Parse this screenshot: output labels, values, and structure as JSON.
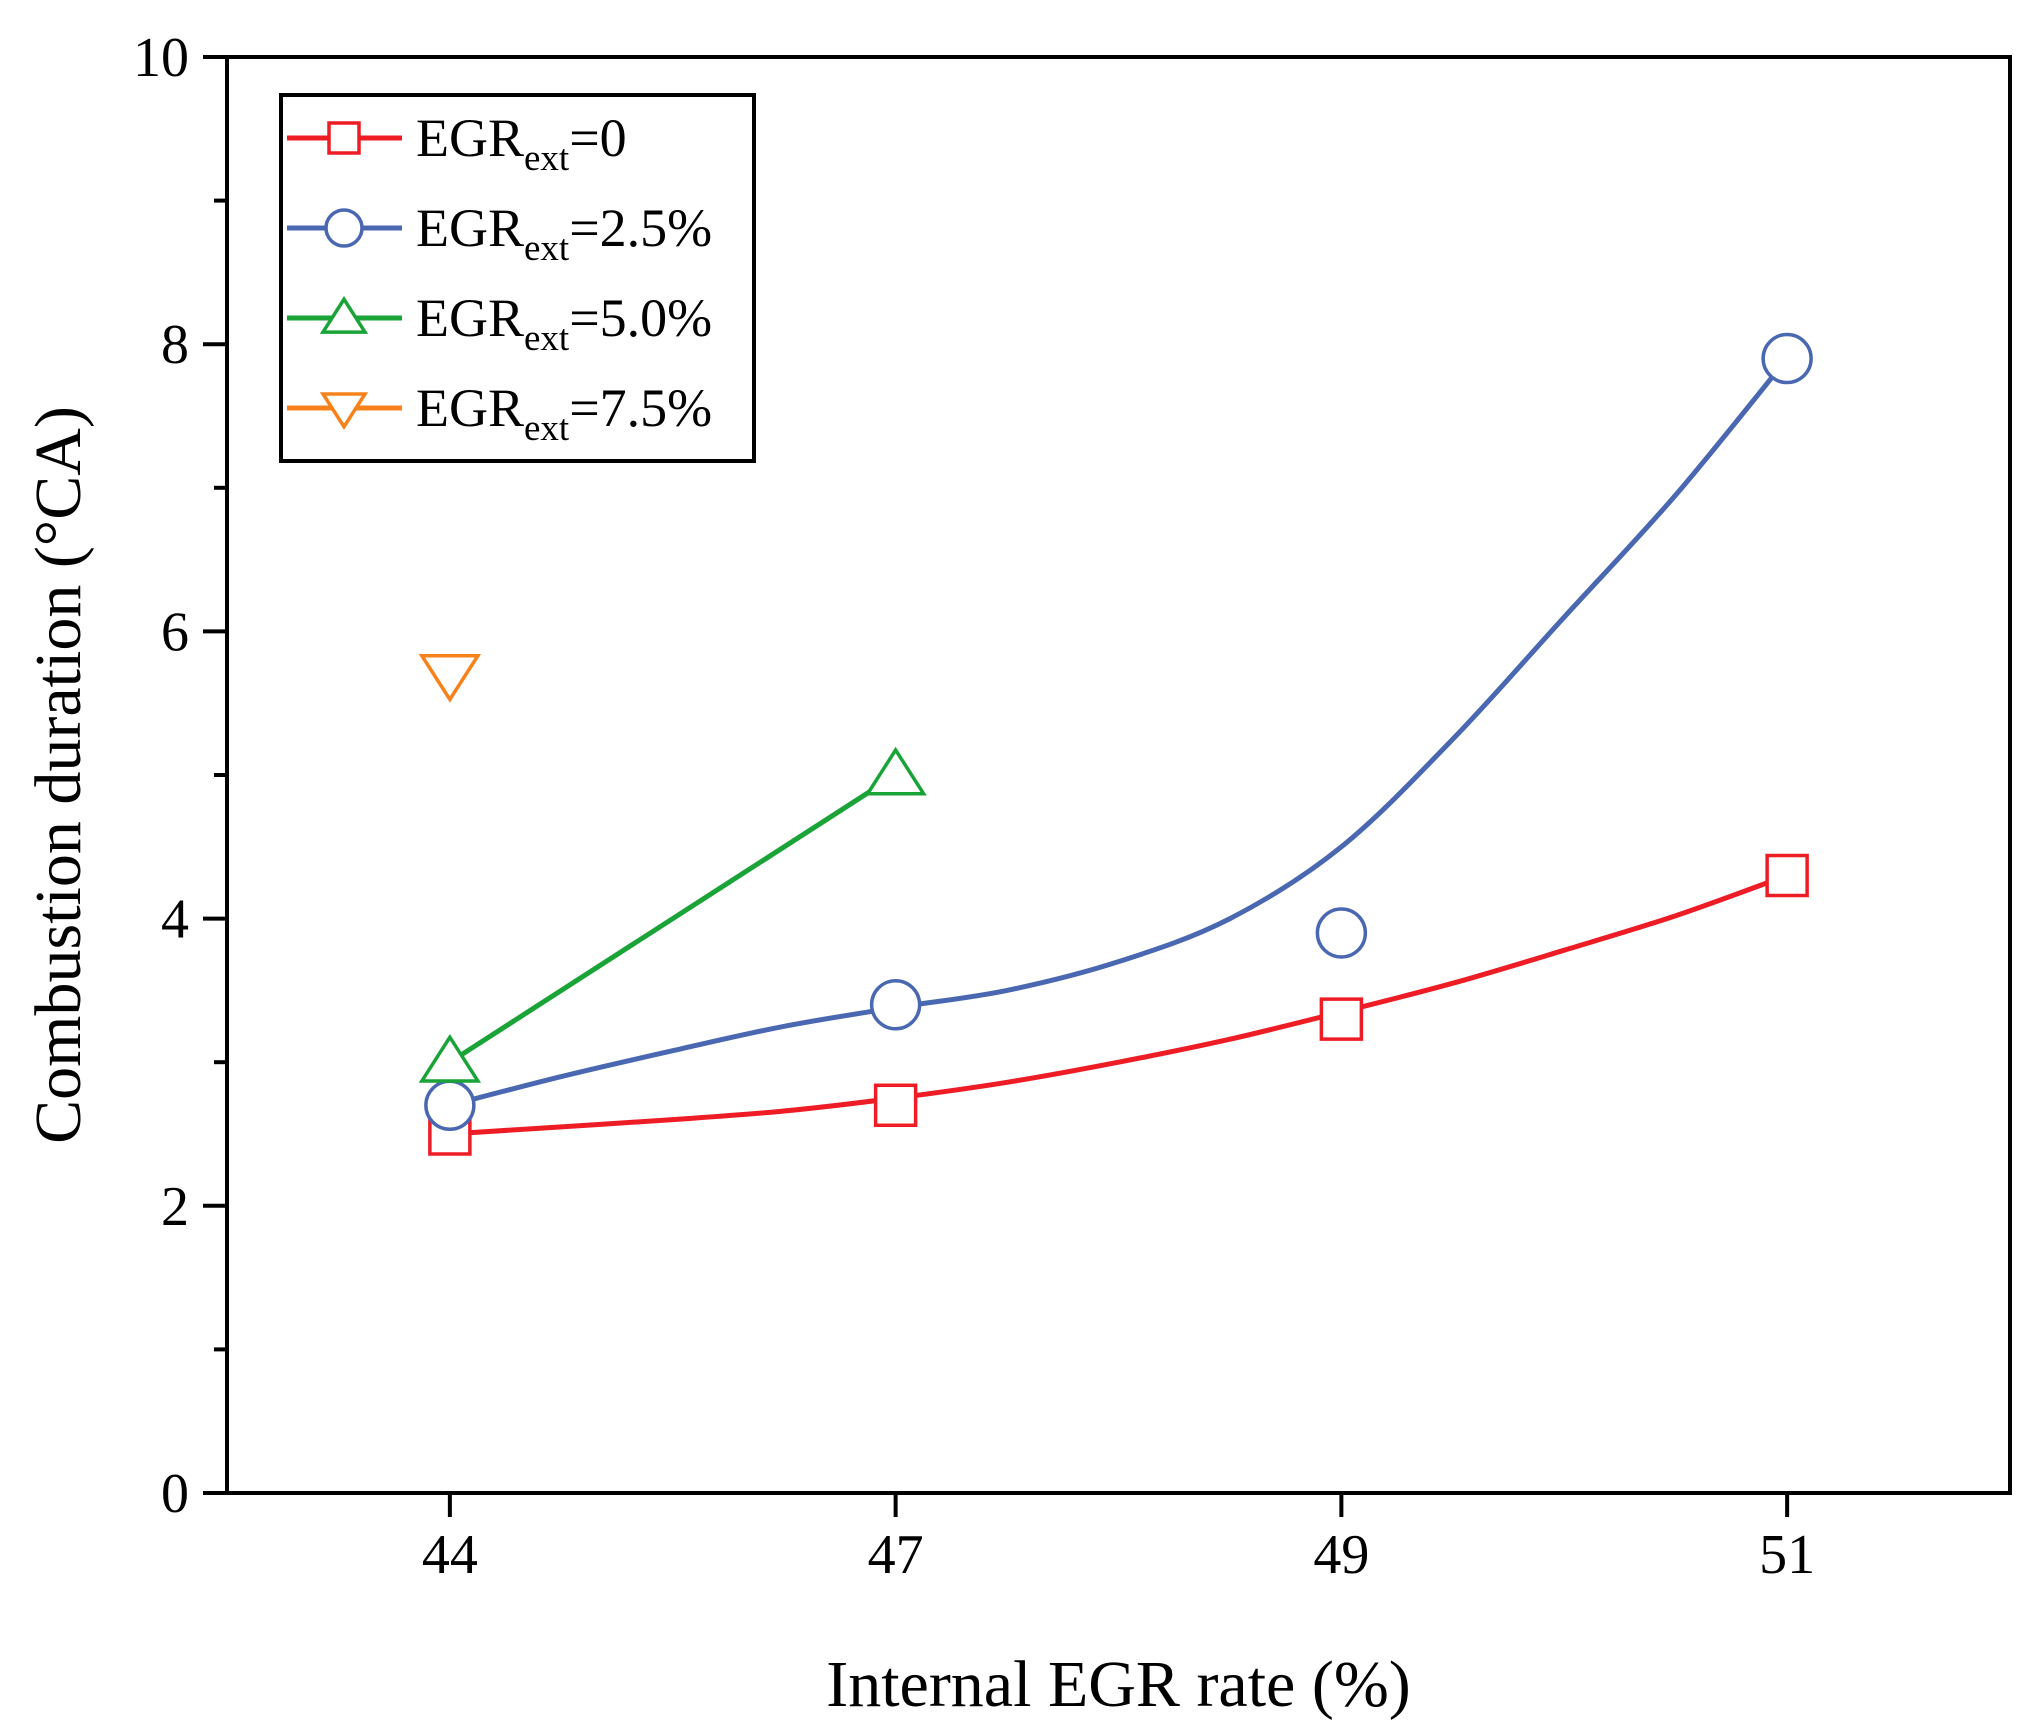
{
  "chart_data": {
    "type": "line",
    "title": "",
    "xlabel": "Internal EGR rate (%)",
    "ylabel": "Combustion duration (°CA)",
    "categories": [
      "44",
      "47",
      "49",
      "51"
    ],
    "x_range": [
      -0.5,
      3.5
    ],
    "ylim": [
      0,
      10
    ],
    "yticks": [
      0,
      2,
      4,
      6,
      8,
      10
    ],
    "ytick_labels": [
      "0",
      "2",
      "4",
      "6",
      "8",
      "10"
    ],
    "grid": false,
    "legend_position": "top-left",
    "series": [
      {
        "name": "EGRext=0",
        "label_main": "EGR",
        "label_sub": "ext",
        "label_value": "=0",
        "color": "#ee1c25",
        "marker": "square",
        "x": [
          0,
          1,
          2,
          3
        ],
        "values": [
          2.5,
          2.7,
          3.3,
          4.3
        ],
        "curve_x": [
          0,
          0.25,
          0.5,
          0.75,
          1,
          1.25,
          1.5,
          1.75,
          2,
          2.25,
          2.5,
          2.75,
          3
        ],
        "curve_y": [
          2.5,
          2.55,
          2.6,
          2.66,
          2.75,
          2.86,
          3.0,
          3.16,
          3.35,
          3.55,
          3.78,
          4.02,
          4.3
        ]
      },
      {
        "name": "EGRext=2.5%",
        "label_main": "EGR",
        "label_sub": "ext",
        "label_value": "=2.5%",
        "color": "#4a68b1",
        "marker": "circle",
        "x": [
          0,
          1,
          2,
          3
        ],
        "values": [
          2.7,
          3.4,
          3.9,
          7.9
        ],
        "curve_x": [
          0,
          0.25,
          0.5,
          0.75,
          1,
          1.25,
          1.5,
          1.75,
          2,
          2.25,
          2.5,
          2.75,
          3
        ],
        "curve_y": [
          2.7,
          2.9,
          3.08,
          3.25,
          3.38,
          3.5,
          3.7,
          4.0,
          4.5,
          5.25,
          6.1,
          6.95,
          7.9
        ]
      },
      {
        "name": "EGRext=5.0%",
        "label_main": "EGR",
        "label_sub": "ext",
        "label_value": "=5.0%",
        "color": "#1aa337",
        "marker": "triangle-up",
        "x": [
          0,
          1
        ],
        "values": [
          3.0,
          5.0
        ],
        "curve_x": [
          0,
          1
        ],
        "curve_y": [
          3.0,
          5.0
        ]
      },
      {
        "name": "EGRext=7.5%",
        "label_main": "EGR",
        "label_sub": "ext",
        "label_value": "=7.5%",
        "color": "#f7821b",
        "marker": "triangle-down",
        "x": [
          0
        ],
        "values": [
          5.7
        ],
        "curve_x": [],
        "curve_y": []
      }
    ]
  }
}
